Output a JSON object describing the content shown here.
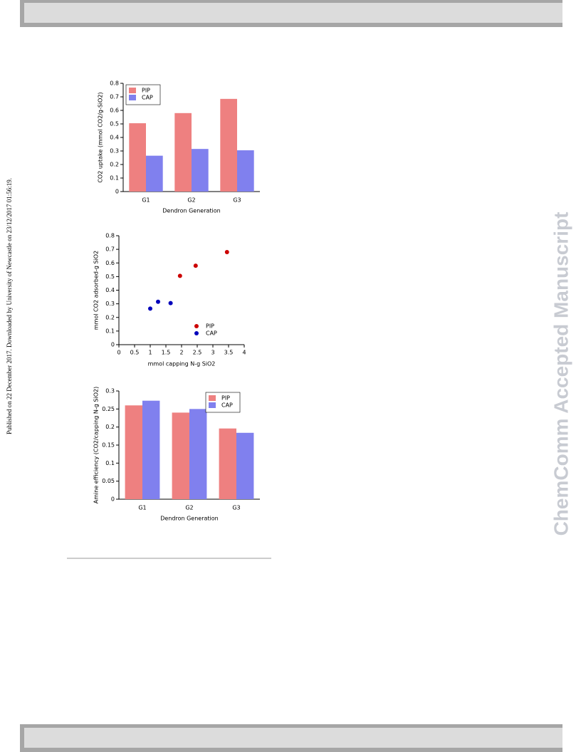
{
  "side_note": "Published on 22 December 2017. Downloaded by University of Newcastle on 23/12/2017 01:56:19.",
  "watermark": "ChemComm Accepted Manuscript",
  "chart_data": [
    {
      "type": "bar",
      "xlabel": "Dendron Generation",
      "ylabel": "CO2 uptake (mmol CO2/g-SiO2)",
      "categories": [
        "G1",
        "G2",
        "G3"
      ],
      "series": [
        {
          "name": "PIP",
          "color": "#ee8080",
          "values": [
            0.505,
            0.58,
            0.685
          ]
        },
        {
          "name": "CAP",
          "color": "#8080ee",
          "values": [
            0.265,
            0.315,
            0.305
          ]
        }
      ],
      "ylim": [
        0,
        0.8
      ],
      "yticks": [
        0,
        0.1,
        0.2,
        0.3,
        0.4,
        0.5,
        0.6,
        0.7,
        0.8
      ],
      "legend": "upper left"
    },
    {
      "type": "scatter",
      "xlabel": "mmol capping N-g SiO2",
      "ylabel": "mmol CO2 adsorbed-g SiO2",
      "series": [
        {
          "name": "PIP",
          "color": "#cc0000",
          "x": [
            1.95,
            2.45,
            3.45
          ],
          "values": [
            0.505,
            0.58,
            0.68
          ]
        },
        {
          "name": "CAP",
          "color": "#0000bb",
          "x": [
            1.0,
            1.25,
            1.65
          ],
          "values": [
            0.265,
            0.315,
            0.305
          ]
        }
      ],
      "xlim": [
        0,
        4
      ],
      "xticks": [
        0,
        0.5,
        1,
        1.5,
        2,
        2.5,
        3,
        3.5,
        4
      ],
      "ylim": [
        0,
        0.8
      ],
      "yticks": [
        0,
        0.1,
        0.2,
        0.3,
        0.4,
        0.5,
        0.6,
        0.7,
        0.8
      ],
      "legend": "lower right"
    },
    {
      "type": "bar",
      "xlabel": "Dendron Generation",
      "ylabel": "Amine efficiency (CO2/capping N-g SiO2)",
      "categories": [
        "G1",
        "G2",
        "G3"
      ],
      "series": [
        {
          "name": "PIP",
          "color": "#ee8080",
          "values": [
            0.26,
            0.24,
            0.196
          ]
        },
        {
          "name": "CAP",
          "color": "#8080ee",
          "values": [
            0.273,
            0.25,
            0.184
          ]
        }
      ],
      "ylim": [
        0,
        0.3
      ],
      "yticks": [
        0,
        0.05,
        0.1,
        0.15,
        0.2,
        0.25,
        0.3
      ],
      "legend": "upper right"
    }
  ]
}
